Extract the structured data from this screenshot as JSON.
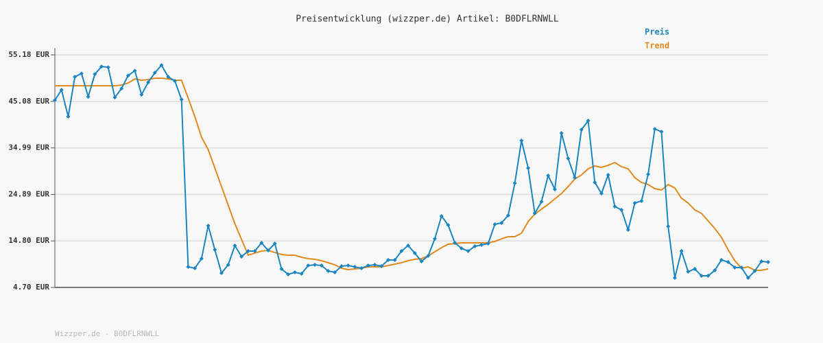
{
  "chart_data": {
    "type": "line",
    "title": "Preisentwicklung (wizzper.de) Artikel: B0DFLRNWLL",
    "footer": "Wizzper.de - B0DFLRNWLL",
    "ylim": [
      4.7,
      55.18
    ],
    "yticks": [
      {
        "value": 4.7,
        "label": "4.70 EUR"
      },
      {
        "value": 14.8,
        "label": "14.80 EUR"
      },
      {
        "value": 24.89,
        "label": "24.89 EUR"
      },
      {
        "value": 34.99,
        "label": "34.99 EUR"
      },
      {
        "value": 45.08,
        "label": "45.08 EUR"
      },
      {
        "value": 55.18,
        "label": "55.18 EUR"
      }
    ],
    "grid": true,
    "legend": "top-right",
    "series": [
      {
        "name": "Preis",
        "color": "#1a85c0",
        "markers": true,
        "values": [
          45.35,
          47.58,
          41.78,
          50.41,
          51.15,
          46.09,
          51.0,
          52.64,
          52.49,
          45.94,
          47.88,
          50.7,
          51.74,
          46.54,
          49.22,
          51.3,
          52.94,
          50.41,
          49.52,
          45.5,
          9.17,
          8.87,
          10.95,
          18.1,
          12.89,
          7.83,
          9.61,
          13.78,
          11.4,
          12.59,
          12.59,
          14.38,
          12.74,
          14.23,
          8.72,
          7.53,
          7.98,
          7.68,
          9.46,
          9.61,
          9.46,
          8.27,
          7.98,
          9.31,
          9.46,
          9.17,
          8.87,
          9.46,
          9.61,
          9.31,
          10.66,
          10.66,
          12.59,
          13.78,
          12.14,
          10.36,
          11.55,
          15.27,
          20.19,
          18.25,
          14.38,
          13.19,
          12.59,
          13.63,
          13.93,
          14.23,
          18.4,
          18.7,
          20.33,
          27.34,
          36.57,
          30.61,
          20.78,
          23.31,
          28.98,
          25.99,
          38.21,
          32.7,
          28.53,
          38.95,
          40.89,
          27.49,
          25.1,
          29.12,
          22.27,
          21.53,
          17.21,
          23.02,
          23.46,
          29.27,
          39.1,
          38.5,
          17.95,
          6.78,
          12.59,
          8.12,
          8.72,
          7.23,
          7.23,
          8.42,
          10.66,
          10.21,
          9.02,
          9.02,
          6.78,
          8.27,
          10.36,
          10.21
        ]
      },
      {
        "name": "Trend",
        "color": "#e08a1e",
        "markers": false,
        "values": [
          48.48,
          48.48,
          48.48,
          48.48,
          48.48,
          48.48,
          48.48,
          48.48,
          48.48,
          48.48,
          48.63,
          49.08,
          49.97,
          49.67,
          49.82,
          50.12,
          50.12,
          49.97,
          49.67,
          49.67,
          45.8,
          41.78,
          37.31,
          34.63,
          30.61,
          26.59,
          22.57,
          18.55,
          15.12,
          11.7,
          12.15,
          12.59,
          12.74,
          12.29,
          11.85,
          11.7,
          11.7,
          11.25,
          10.95,
          10.81,
          10.51,
          10.06,
          9.61,
          8.87,
          8.57,
          8.72,
          8.87,
          9.17,
          9.17,
          9.17,
          9.47,
          9.76,
          10.06,
          10.51,
          10.81,
          10.95,
          11.55,
          12.44,
          13.34,
          14.08,
          14.23,
          14.38,
          14.38,
          14.38,
          14.38,
          14.38,
          14.68,
          15.27,
          15.72,
          15.72,
          16.46,
          19.0,
          20.63,
          21.68,
          22.72,
          23.91,
          25.1,
          26.59,
          28.23,
          29.12,
          30.46,
          31.06,
          30.76,
          31.21,
          31.8,
          30.91,
          30.46,
          28.53,
          27.48,
          27.04,
          26.14,
          25.85,
          27.04,
          26.29,
          24.06,
          23.02,
          21.53,
          20.78,
          19.14,
          17.51,
          15.57,
          12.89,
          10.51,
          8.87,
          9.17,
          8.42,
          8.42,
          8.72
        ]
      }
    ]
  }
}
